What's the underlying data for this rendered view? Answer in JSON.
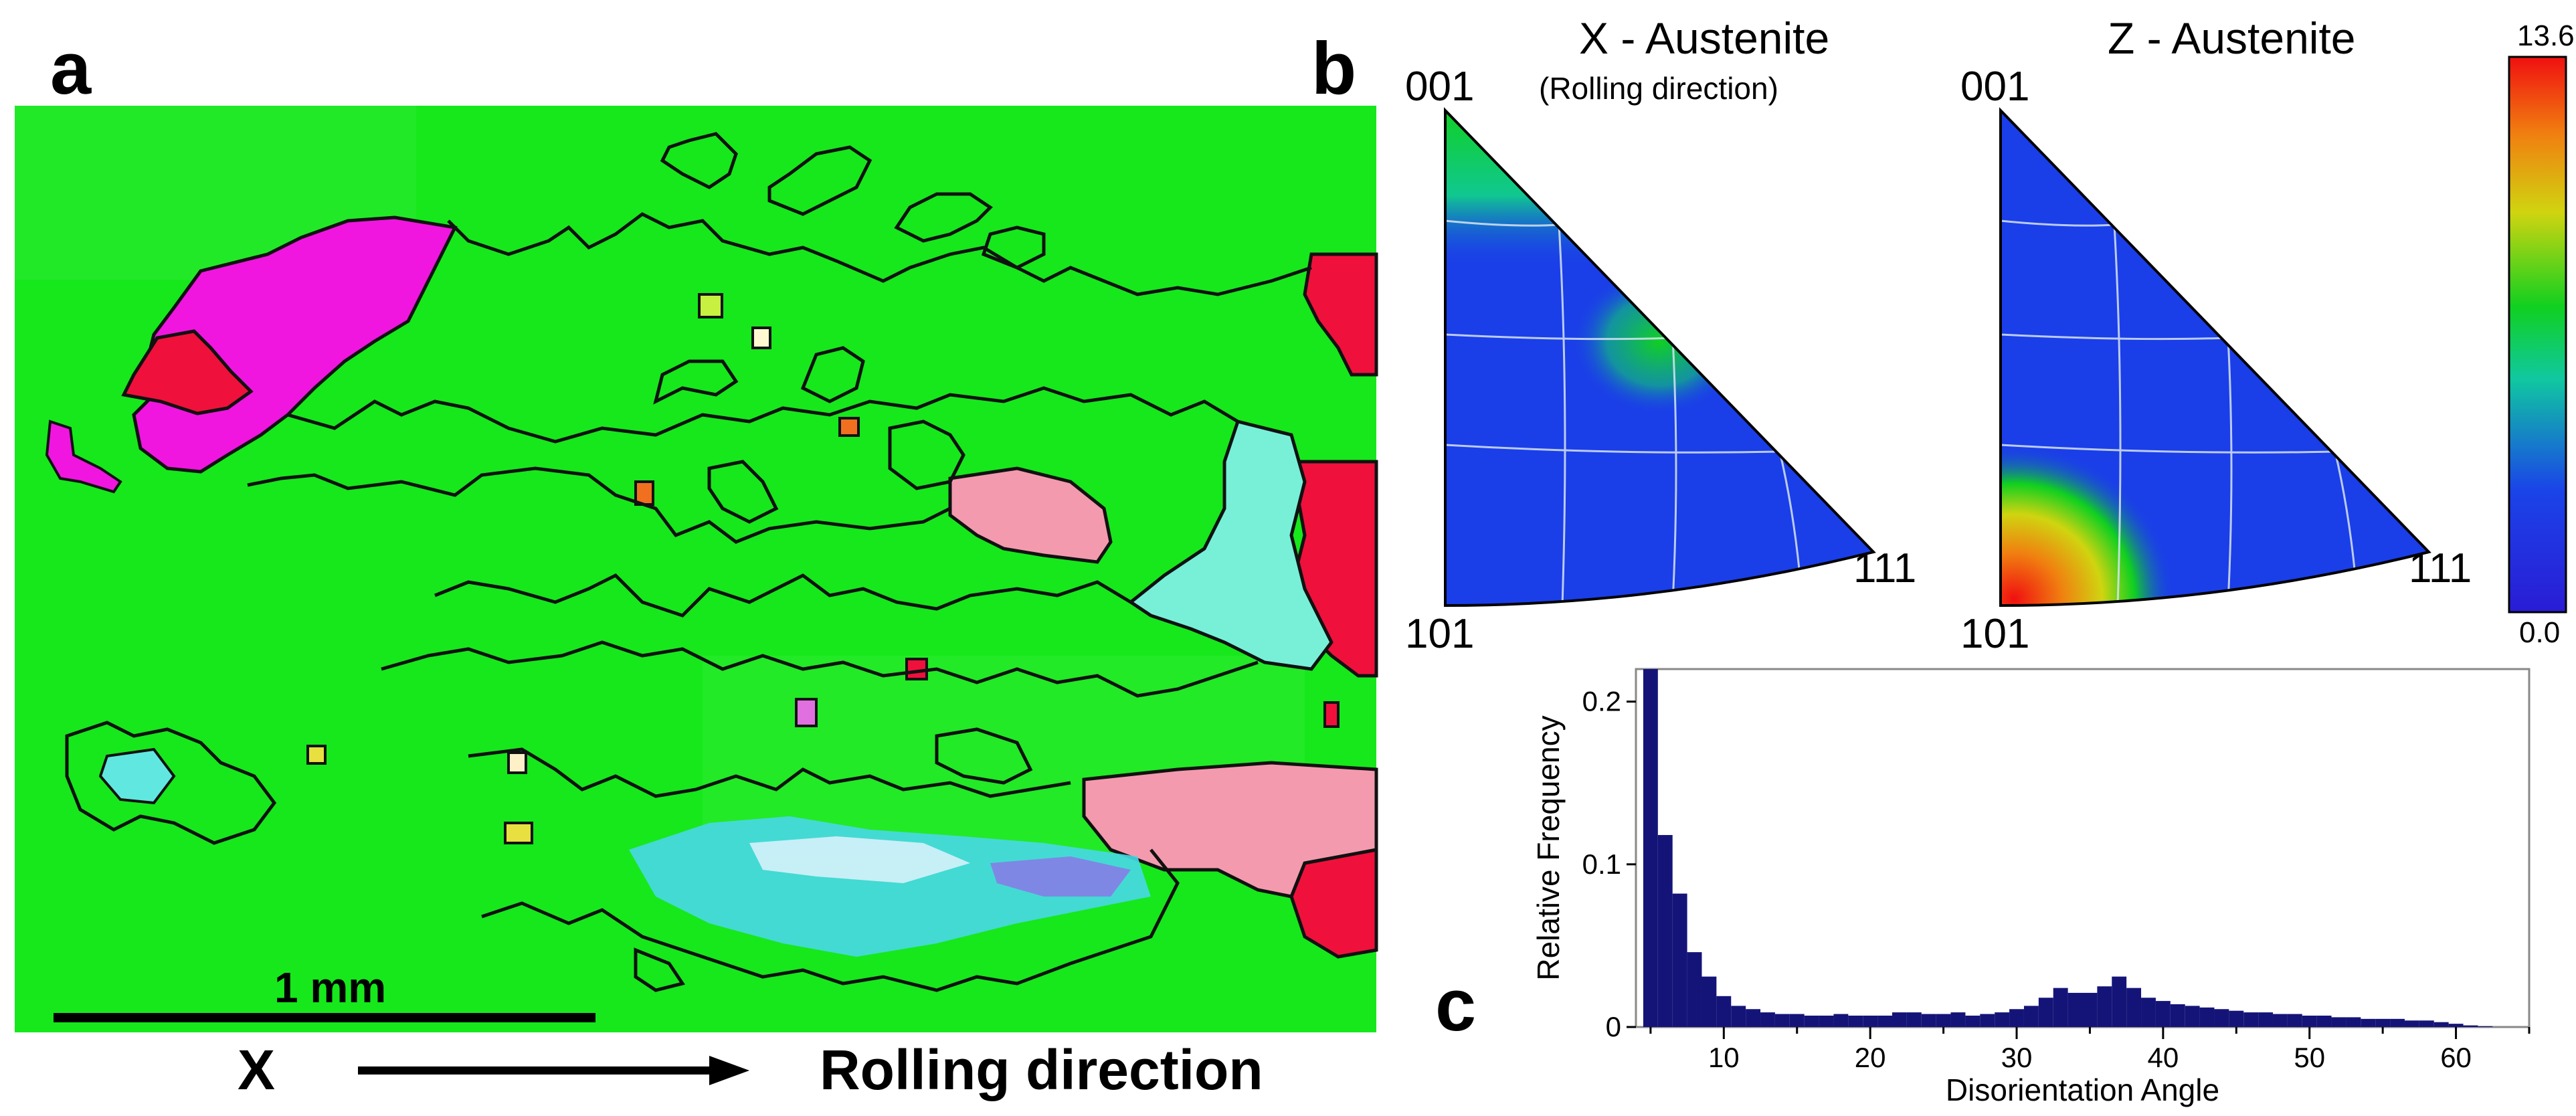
{
  "panel_a": {
    "letter": "a",
    "scale_bar_label": "1 mm",
    "axis_label": "X",
    "direction_label": "Rolling direction",
    "colors": {
      "matrix": "#16e81c",
      "magenta": "#f016e0",
      "red": "#f0103c",
      "pink": "#f49aae",
      "cyan": "#78f0d8",
      "boundary": "#111111"
    }
  },
  "panel_b": {
    "letter": "b",
    "figures": [
      {
        "title": "X - Austenite",
        "subtitle": "(Rolling direction)",
        "corners": {
          "top": "001",
          "bottom": "101",
          "right": "111"
        }
      },
      {
        "title": "Z - Austenite",
        "subtitle": "",
        "corners": {
          "top": "001",
          "bottom": "101",
          "right": "111"
        }
      }
    ],
    "colorbar": {
      "max_label": "13.6",
      "min_label": "0.0",
      "stops": [
        "#2a1cd6",
        "#1a44e8",
        "#10c8a0",
        "#10d020",
        "#d0d410",
        "#f08010",
        "#f01010"
      ]
    }
  },
  "panel_c": {
    "letter": "c",
    "chart_data": {
      "type": "bar",
      "xlabel": "Disorientation Angle",
      "ylabel": "Relative Frequency",
      "xlim": [
        4,
        65
      ],
      "ylim": [
        0,
        0.22
      ],
      "x_ticks": [
        10,
        20,
        30,
        40,
        50,
        60
      ],
      "y_ticks": [
        0,
        0.1,
        0.2
      ],
      "bin_width": 1,
      "x": [
        5,
        6,
        7,
        8,
        9,
        10,
        11,
        12,
        13,
        14,
        15,
        16,
        17,
        18,
        19,
        20,
        21,
        22,
        23,
        24,
        25,
        26,
        27,
        28,
        29,
        30,
        31,
        32,
        33,
        34,
        35,
        36,
        37,
        38,
        39,
        40,
        41,
        42,
        43,
        44,
        45,
        46,
        47,
        48,
        49,
        50,
        51,
        52,
        53,
        54,
        55,
        56,
        57,
        58,
        59,
        60,
        61,
        62
      ],
      "values": [
        0.225,
        0.118,
        0.082,
        0.046,
        0.031,
        0.019,
        0.013,
        0.011,
        0.009,
        0.008,
        0.008,
        0.007,
        0.007,
        0.008,
        0.007,
        0.007,
        0.007,
        0.009,
        0.009,
        0.008,
        0.008,
        0.009,
        0.007,
        0.008,
        0.009,
        0.011,
        0.013,
        0.018,
        0.024,
        0.021,
        0.021,
        0.025,
        0.031,
        0.024,
        0.018,
        0.016,
        0.014,
        0.013,
        0.012,
        0.011,
        0.01,
        0.009,
        0.009,
        0.008,
        0.008,
        0.007,
        0.007,
        0.006,
        0.006,
        0.005,
        0.005,
        0.005,
        0.004,
        0.004,
        0.003,
        0.002,
        0.001,
        0.0005
      ],
      "bar_color": "#141478"
    }
  }
}
